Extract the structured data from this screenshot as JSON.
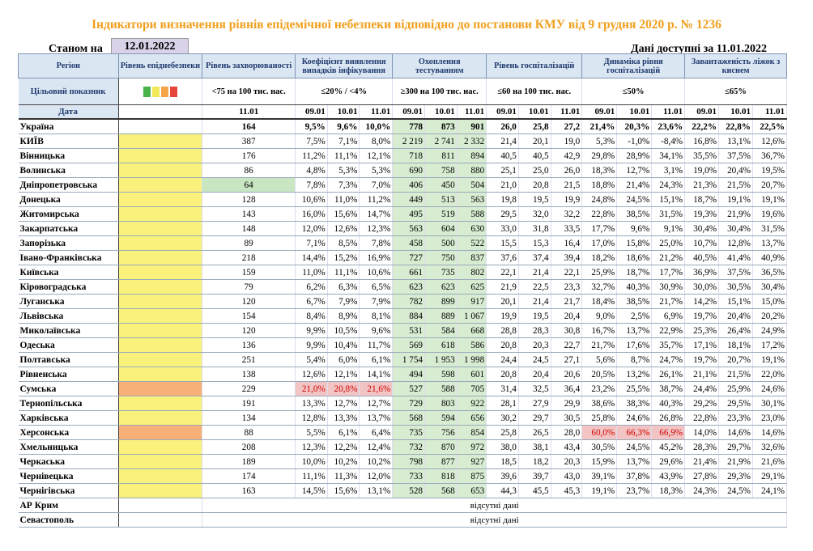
{
  "title": "Індикатори визначення рівнів епідемічної небезпеки відповідно до постанови КМУ від 9 грудня 2020 р. № 1236",
  "as_of_label": "Станом на",
  "as_of_date": "12.01.2022",
  "available_label": "Дані доступні за 11.01.2022",
  "headers": {
    "region": "Регіон",
    "danger_level": "Рівень епіднебезпеки",
    "incidence": "Рівень захворюваності",
    "detection": "Коефіцієнт виявлення випадків інфікування",
    "testing": "Охоплення тестуванням",
    "hosp": "Рівень госпіталізацій",
    "hosp_dyn": "Динаміка рівня госпіталізацій",
    "beds": "Завантаженість ліжок з киснем"
  },
  "targets": {
    "label": "Цільовий показник",
    "incidence": "<75 на 100 тис. нас.",
    "detection": "≤20% / <4%",
    "testing": "≥300 на 100 тис. нас.",
    "hosp": "≤60 на 100 тис. нас.",
    "hosp_dyn": "≤50%",
    "beds": "≤65%",
    "swatch_colors": [
      "#47b34a",
      "#f2e85a",
      "#f5a447",
      "#e5453a"
    ]
  },
  "dates": {
    "label": "Дата",
    "incidence": "11.01",
    "triple": [
      "09.01",
      "10.01",
      "11.01"
    ]
  },
  "rows": [
    {
      "name": "Україна",
      "lvl": "",
      "inc": "164",
      "det": [
        "9,5%",
        "9,6%",
        "10,0%"
      ],
      "test": [
        "778",
        "873",
        "901"
      ],
      "hosp": [
        "26,0",
        "25,8",
        "27,2"
      ],
      "dyn": [
        "21,4%",
        "20,3%",
        "23,6%"
      ],
      "beds": [
        "22,2%",
        "22,8%",
        "22,5%"
      ]
    },
    {
      "name": "КИЇВ",
      "lvl": "yellow",
      "inc": "387",
      "det": [
        "7,5%",
        "7,1%",
        "8,0%"
      ],
      "test": [
        "2 219",
        "2 741",
        "2 332"
      ],
      "hosp": [
        "21,4",
        "20,1",
        "19,0"
      ],
      "dyn": [
        "5,3%",
        "-1,0%",
        "-8,4%"
      ],
      "beds": [
        "16,8%",
        "13,1%",
        "12,6%"
      ]
    },
    {
      "name": "Вінницька",
      "lvl": "yellow",
      "inc": "176",
      "det": [
        "11,2%",
        "11,1%",
        "12,1%"
      ],
      "test": [
        "718",
        "811",
        "894"
      ],
      "hosp": [
        "40,5",
        "40,5",
        "42,9"
      ],
      "dyn": [
        "29,8%",
        "28,9%",
        "34,1%"
      ],
      "beds": [
        "35,5%",
        "37,5%",
        "36,7%"
      ]
    },
    {
      "name": "Волинська",
      "lvl": "yellow",
      "inc": "86",
      "det": [
        "4,8%",
        "5,3%",
        "5,3%"
      ],
      "test": [
        "690",
        "758",
        "880"
      ],
      "hosp": [
        "25,1",
        "25,0",
        "26,0"
      ],
      "dyn": [
        "18,3%",
        "12,7%",
        "3,1%"
      ],
      "beds": [
        "19,0%",
        "20,4%",
        "19,5%"
      ]
    },
    {
      "name": "Дніпропетровська",
      "lvl": "yellow",
      "inc": "64",
      "det": [
        "7,8%",
        "7,3%",
        "7,0%"
      ],
      "test": [
        "406",
        "450",
        "504"
      ],
      "hosp": [
        "21,0",
        "20,8",
        "21,5"
      ],
      "dyn": [
        "18,8%",
        "21,4%",
        "24,3%"
      ],
      "beds": [
        "21,3%",
        "21,5%",
        "20,7%"
      ]
    },
    {
      "name": "Донецька",
      "lvl": "yellow",
      "inc": "128",
      "det": [
        "10,6%",
        "11,0%",
        "11,2%"
      ],
      "test": [
        "449",
        "513",
        "563"
      ],
      "hosp": [
        "19,8",
        "19,5",
        "19,9"
      ],
      "dyn": [
        "24,8%",
        "24,5%",
        "15,1%"
      ],
      "beds": [
        "18,7%",
        "19,1%",
        "19,1%"
      ]
    },
    {
      "name": "Житомирська",
      "lvl": "yellow",
      "inc": "143",
      "det": [
        "16,0%",
        "15,6%",
        "14,7%"
      ],
      "test": [
        "495",
        "519",
        "588"
      ],
      "hosp": [
        "29,5",
        "32,0",
        "32,2"
      ],
      "dyn": [
        "22,8%",
        "38,5%",
        "31,5%"
      ],
      "beds": [
        "19,3%",
        "21,9%",
        "19,6%"
      ]
    },
    {
      "name": "Закарпатська",
      "lvl": "yellow",
      "inc": "148",
      "det": [
        "12,0%",
        "12,6%",
        "12,3%"
      ],
      "test": [
        "563",
        "604",
        "630"
      ],
      "hosp": [
        "33,0",
        "31,8",
        "33,5"
      ],
      "dyn": [
        "17,7%",
        "9,6%",
        "9,1%"
      ],
      "beds": [
        "30,4%",
        "30,4%",
        "31,5%"
      ]
    },
    {
      "name": "Запорізька",
      "lvl": "yellow",
      "inc": "89",
      "det": [
        "7,1%",
        "8,5%",
        "7,8%"
      ],
      "test": [
        "458",
        "500",
        "522"
      ],
      "hosp": [
        "15,5",
        "15,3",
        "16,4"
      ],
      "dyn": [
        "17,0%",
        "15,8%",
        "25,0%"
      ],
      "beds": [
        "10,7%",
        "12,8%",
        "13,7%"
      ]
    },
    {
      "name": "Івано-Франківська",
      "lvl": "yellow",
      "inc": "218",
      "det": [
        "14,4%",
        "15,2%",
        "16,9%"
      ],
      "test": [
        "727",
        "750",
        "837"
      ],
      "hosp": [
        "37,6",
        "37,4",
        "39,4"
      ],
      "dyn": [
        "18,2%",
        "18,6%",
        "21,2%"
      ],
      "beds": [
        "40,5%",
        "41,4%",
        "40,9%"
      ]
    },
    {
      "name": "Київська",
      "lvl": "yellow",
      "inc": "159",
      "det": [
        "11,0%",
        "11,1%",
        "10,6%"
      ],
      "test": [
        "661",
        "735",
        "802"
      ],
      "hosp": [
        "22,1",
        "21,4",
        "22,1"
      ],
      "dyn": [
        "25,9%",
        "18,7%",
        "17,7%"
      ],
      "beds": [
        "36,9%",
        "37,5%",
        "36,5%"
      ]
    },
    {
      "name": "Кіровоградська",
      "lvl": "yellow",
      "inc": "79",
      "det": [
        "6,2%",
        "6,3%",
        "6,5%"
      ],
      "test": [
        "623",
        "623",
        "625"
      ],
      "hosp": [
        "21,9",
        "22,5",
        "23,3"
      ],
      "dyn": [
        "32,7%",
        "40,3%",
        "30,9%"
      ],
      "beds": [
        "30,0%",
        "30,5%",
        "30,4%"
      ]
    },
    {
      "name": "Луганська",
      "lvl": "yellow",
      "inc": "120",
      "det": [
        "6,7%",
        "7,9%",
        "7,9%"
      ],
      "test": [
        "782",
        "899",
        "917"
      ],
      "hosp": [
        "20,1",
        "21,4",
        "21,7"
      ],
      "dyn": [
        "18,4%",
        "38,5%",
        "21,7%"
      ],
      "beds": [
        "14,2%",
        "15,1%",
        "15,0%"
      ]
    },
    {
      "name": "Львівська",
      "lvl": "yellow",
      "inc": "154",
      "det": [
        "8,4%",
        "8,9%",
        "8,1%"
      ],
      "test": [
        "884",
        "889",
        "1 067"
      ],
      "hosp": [
        "19,9",
        "19,5",
        "20,4"
      ],
      "dyn": [
        "9,0%",
        "2,5%",
        "6,9%"
      ],
      "beds": [
        "19,7%",
        "20,4%",
        "20,2%"
      ]
    },
    {
      "name": "Миколаївська",
      "lvl": "yellow",
      "inc": "120",
      "det": [
        "9,9%",
        "10,5%",
        "9,6%"
      ],
      "test": [
        "531",
        "584",
        "668"
      ],
      "hosp": [
        "28,8",
        "28,3",
        "30,8"
      ],
      "dyn": [
        "16,7%",
        "13,7%",
        "22,9%"
      ],
      "beds": [
        "25,3%",
        "26,4%",
        "24,9%"
      ]
    },
    {
      "name": "Одеська",
      "lvl": "yellow",
      "inc": "136",
      "det": [
        "9,9%",
        "10,4%",
        "11,7%"
      ],
      "test": [
        "569",
        "618",
        "586"
      ],
      "hosp": [
        "20,8",
        "20,3",
        "22,7"
      ],
      "dyn": [
        "21,7%",
        "17,6%",
        "35,7%"
      ],
      "beds": [
        "17,1%",
        "18,1%",
        "17,2%"
      ]
    },
    {
      "name": "Полтавська",
      "lvl": "yellow",
      "inc": "251",
      "det": [
        "5,4%",
        "6,0%",
        "6,1%"
      ],
      "test": [
        "1 754",
        "1 953",
        "1 998"
      ],
      "hosp": [
        "24,4",
        "24,5",
        "27,1"
      ],
      "dyn": [
        "5,6%",
        "8,7%",
        "24,7%"
      ],
      "beds": [
        "19,7%",
        "20,7%",
        "19,1%"
      ]
    },
    {
      "name": "Рівненська",
      "lvl": "yellow",
      "inc": "138",
      "det": [
        "12,6%",
        "12,1%",
        "14,1%"
      ],
      "test": [
        "494",
        "598",
        "601"
      ],
      "hosp": [
        "20,8",
        "20,4",
        "20,6"
      ],
      "dyn": [
        "20,5%",
        "13,2%",
        "26,1%"
      ],
      "beds": [
        "21,1%",
        "21,5%",
        "22,0%"
      ]
    },
    {
      "name": "Сумська",
      "lvl": "orange",
      "inc": "229",
      "det": [
        "21,0%",
        "20,8%",
        "21,6%"
      ],
      "test": [
        "527",
        "588",
        "705"
      ],
      "hosp": [
        "31,4",
        "32,5",
        "36,4"
      ],
      "dyn": [
        "23,2%",
        "25,5%",
        "38,7%"
      ],
      "beds": [
        "24,4%",
        "25,9%",
        "24,6%"
      ]
    },
    {
      "name": "Тернопільська",
      "lvl": "yellow",
      "inc": "191",
      "det": [
        "13,3%",
        "12,7%",
        "12,7%"
      ],
      "test": [
        "729",
        "803",
        "922"
      ],
      "hosp": [
        "28,1",
        "27,9",
        "29,9"
      ],
      "dyn": [
        "38,6%",
        "38,3%",
        "40,3%"
      ],
      "beds": [
        "29,2%",
        "29,5%",
        "30,1%"
      ]
    },
    {
      "name": "Харківська",
      "lvl": "yellow",
      "inc": "134",
      "det": [
        "12,8%",
        "13,3%",
        "13,7%"
      ],
      "test": [
        "568",
        "594",
        "656"
      ],
      "hosp": [
        "30,2",
        "29,7",
        "30,5"
      ],
      "dyn": [
        "25,8%",
        "24,6%",
        "26,8%"
      ],
      "beds": [
        "22,8%",
        "23,3%",
        "23,0%"
      ]
    },
    {
      "name": "Херсонська",
      "lvl": "orange",
      "inc": "88",
      "det": [
        "5,5%",
        "6,1%",
        "6,4%"
      ],
      "test": [
        "735",
        "756",
        "854"
      ],
      "hosp": [
        "25,8",
        "26,5",
        "28,0"
      ],
      "dyn": [
        "60,0%",
        "66,3%",
        "66,9%"
      ],
      "beds": [
        "14,0%",
        "14,6%",
        "14,6%"
      ]
    },
    {
      "name": "Хмельницька",
      "lvl": "yellow",
      "inc": "208",
      "det": [
        "12,3%",
        "12,2%",
        "12,4%"
      ],
      "test": [
        "732",
        "870",
        "972"
      ],
      "hosp": [
        "38,0",
        "38,1",
        "43,4"
      ],
      "dyn": [
        "30,5%",
        "24,5%",
        "45,2%"
      ],
      "beds": [
        "28,3%",
        "29,7%",
        "32,6%"
      ]
    },
    {
      "name": "Черкаська",
      "lvl": "yellow",
      "inc": "189",
      "det": [
        "10,0%",
        "10,2%",
        "10,2%"
      ],
      "test": [
        "798",
        "877",
        "927"
      ],
      "hosp": [
        "18,5",
        "18,2",
        "20,3"
      ],
      "dyn": [
        "15,9%",
        "13,7%",
        "29,6%"
      ],
      "beds": [
        "21,4%",
        "21,9%",
        "21,6%"
      ]
    },
    {
      "name": "Чернівецька",
      "lvl": "yellow",
      "inc": "174",
      "det": [
        "11,1%",
        "11,3%",
        "12,0%"
      ],
      "test": [
        "733",
        "818",
        "875"
      ],
      "hosp": [
        "39,6",
        "39,7",
        "43,0"
      ],
      "dyn": [
        "39,1%",
        "37,8%",
        "43,9%"
      ],
      "beds": [
        "27,8%",
        "29,3%",
        "29,1%"
      ]
    },
    {
      "name": "Чернігівська",
      "lvl": "yellow",
      "inc": "163",
      "det": [
        "14,5%",
        "15,6%",
        "13,1%"
      ],
      "test": [
        "528",
        "568",
        "653"
      ],
      "hosp": [
        "44,3",
        "45,5",
        "45,3"
      ],
      "dyn": [
        "19,1%",
        "23,7%",
        "18,3%"
      ],
      "beds": [
        "24,3%",
        "24,5%",
        "24,1%"
      ]
    }
  ],
  "missing": [
    {
      "name": "АР Крим",
      "text": "відсутні дані"
    },
    {
      "name": "Севастополь",
      "text": "відсутні дані"
    }
  ]
}
